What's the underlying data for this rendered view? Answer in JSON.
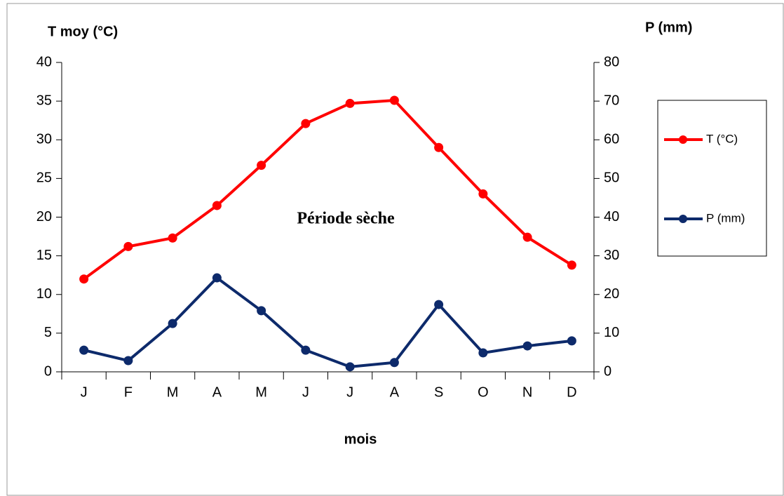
{
  "chart_data": {
    "type": "line",
    "y_label": "T moy (°C)",
    "y2_label": "P (mm)",
    "x_label": "mois",
    "annotation": "Période sèche",
    "categories": [
      "J",
      "F",
      "M",
      "A",
      "M",
      "J",
      "J",
      "A",
      "S",
      "O",
      "N",
      "D"
    ],
    "series": [
      {
        "name": "T (°C)",
        "color": "#ff0000",
        "axis": "y",
        "values": [
          12,
          16.2,
          17.3,
          21.5,
          26.7,
          32.1,
          34.7,
          35.1,
          29.0,
          23.0,
          17.4,
          13.8
        ]
      },
      {
        "name": "P (mm)",
        "color": "#0d2a6b",
        "axis": "y2",
        "values": [
          5.6,
          2.9,
          12.5,
          24.3,
          15.8,
          5.6,
          1.3,
          2.4,
          17.4,
          4.9,
          6.7,
          8.0
        ]
      }
    ],
    "ylim": [
      0,
      40
    ],
    "yticks": [
      0,
      5,
      10,
      15,
      20,
      25,
      30,
      35,
      40
    ],
    "y2lim": [
      0,
      80
    ],
    "y2ticks": [
      0,
      10,
      20,
      30,
      40,
      50,
      60,
      70,
      80
    ],
    "legend": "right"
  }
}
